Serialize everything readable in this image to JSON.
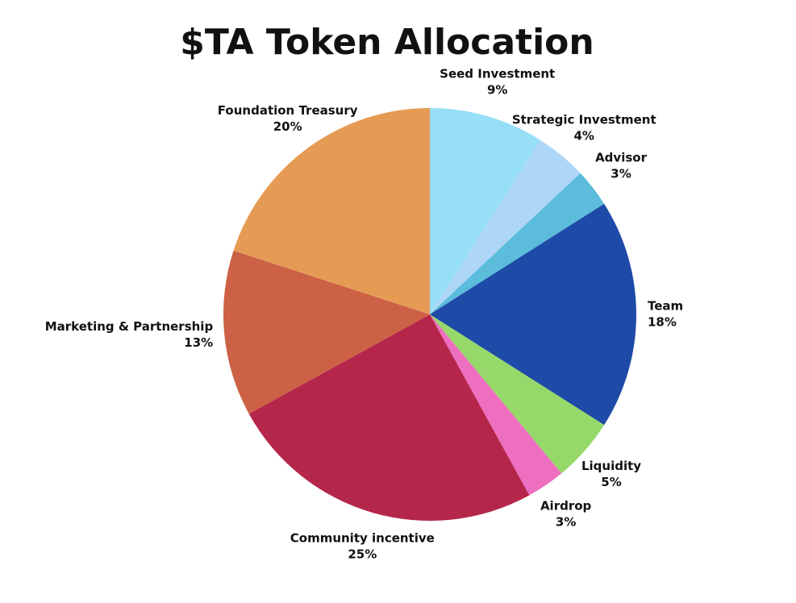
{
  "chart_data": {
    "type": "pie",
    "title": "$TA Token Allocation",
    "categories": [
      "Seed Investment",
      "Strategic Investment",
      "Advisor",
      "Team",
      "Liquidity",
      "Airdrop",
      "Community incentive",
      "Marketing & Partnership",
      "Foundation Treasury"
    ],
    "values": [
      9,
      4,
      3,
      18,
      5,
      3,
      25,
      13,
      20
    ],
    "value_labels": [
      "9%",
      "4%",
      "3%",
      "18%",
      "5%",
      "3%",
      "25%",
      "13%",
      "20%"
    ],
    "colors": [
      "#97dff7",
      "#aed6f7",
      "#5bbcdc",
      "#1e4aa8",
      "#96d96a",
      "#ee6fbf",
      "#b5264b",
      "#cc6145",
      "#e69b55"
    ]
  }
}
